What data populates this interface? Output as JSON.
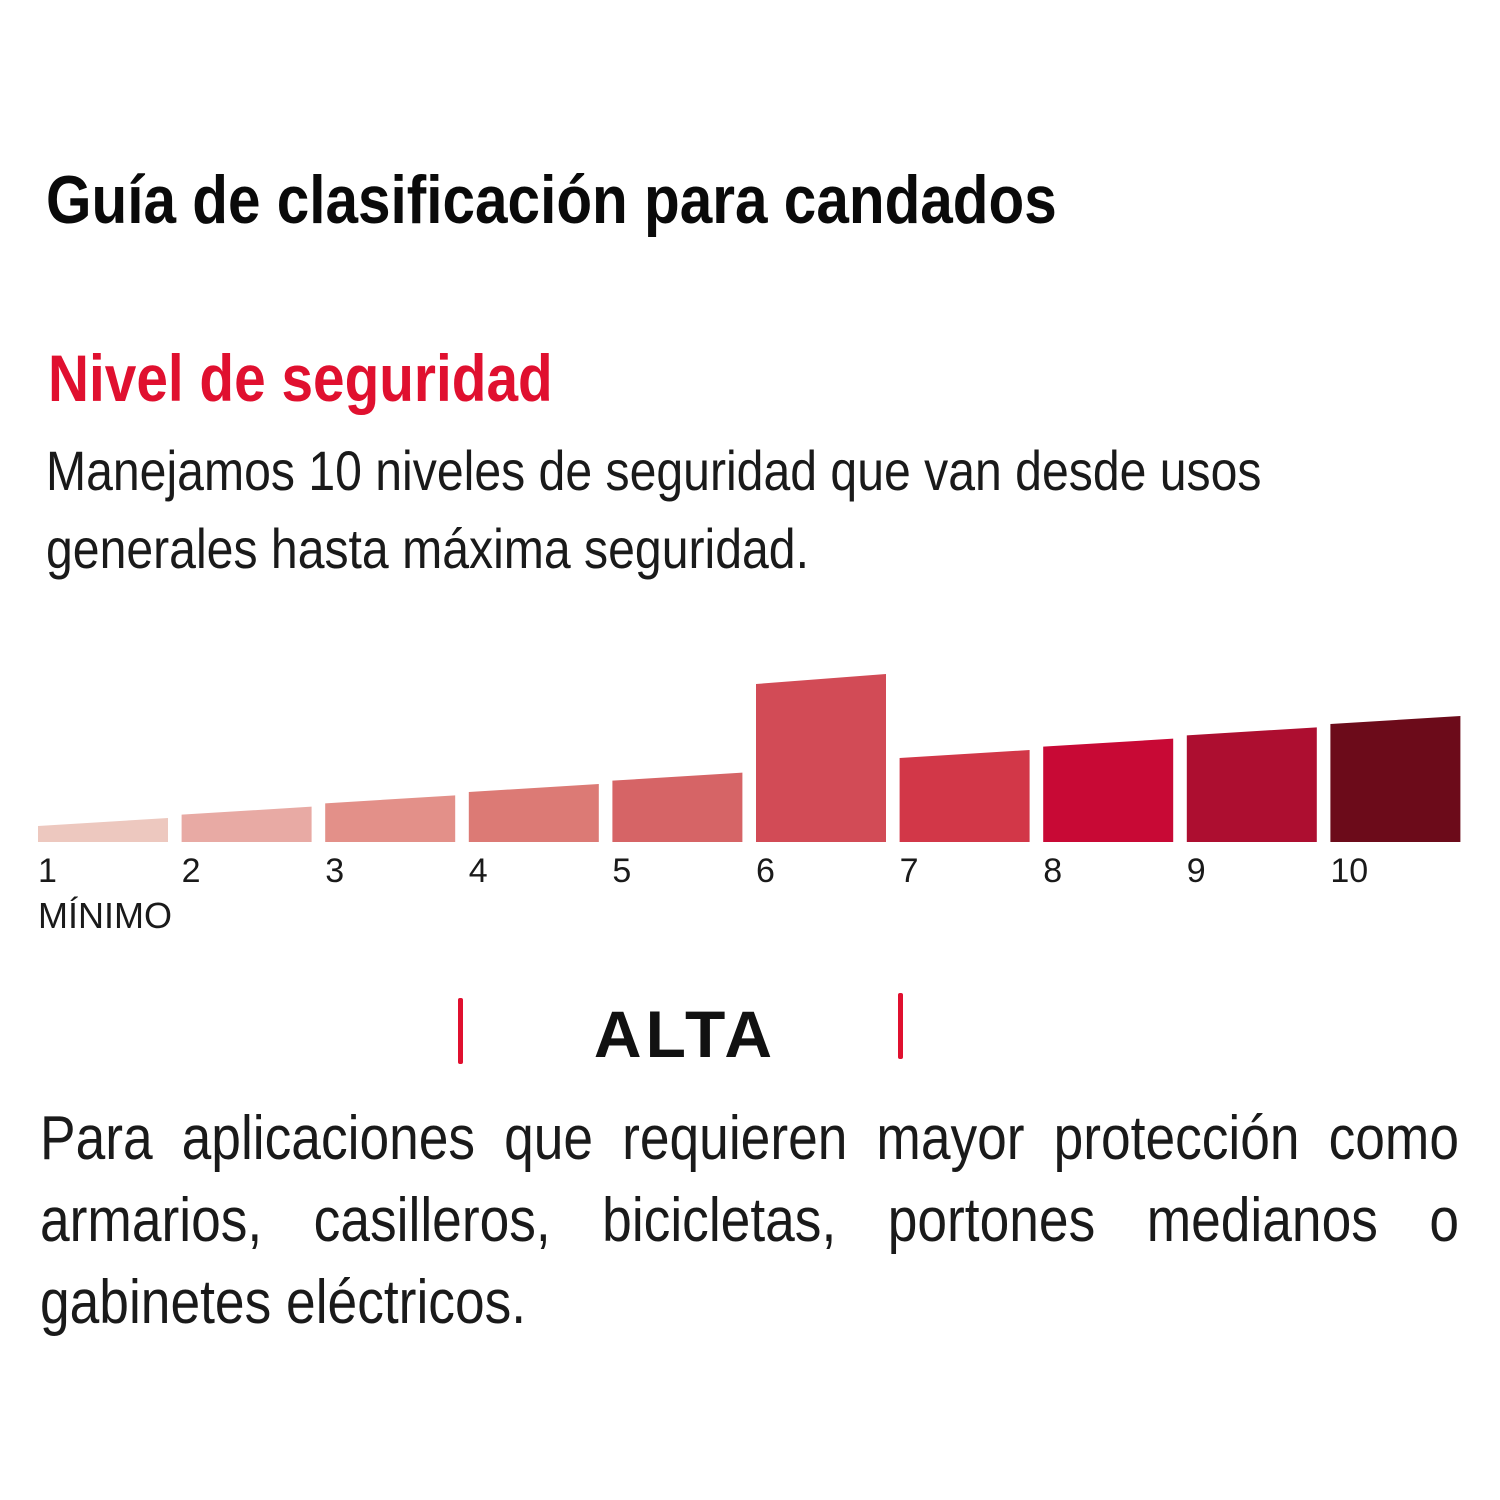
{
  "header": {
    "title": "Guía de clasificación para candados"
  },
  "section": {
    "heading": "Nivel de seguridad",
    "heading_color": "#e0102f",
    "intro": "Manejamos 10 niveles de seguridad que van desde usos generales hasta máxima seguridad."
  },
  "chart_data": {
    "type": "bar",
    "categories": [
      "1",
      "2",
      "3",
      "4",
      "5",
      "6",
      "7",
      "8",
      "9",
      "10"
    ],
    "values": [
      1,
      2,
      3,
      4,
      5,
      6,
      7,
      8,
      9,
      10
    ],
    "highlighted_level": "6",
    "min_label": "MÍNIMO",
    "colors": [
      "#edc8bf",
      "#e8aaa4",
      "#e39089",
      "#dc7a75",
      "#d66466",
      "#d24b56",
      "#d23748",
      "#c80935",
      "#ad0e30",
      "#6c0b1a"
    ]
  },
  "level": {
    "name": "ALTA",
    "marker_color": "#e0102f",
    "description": "Para aplicaciones que requieren mayor protección como armarios, casilleros, bicicletas, portones medianos o gabinetes eléctricos."
  }
}
